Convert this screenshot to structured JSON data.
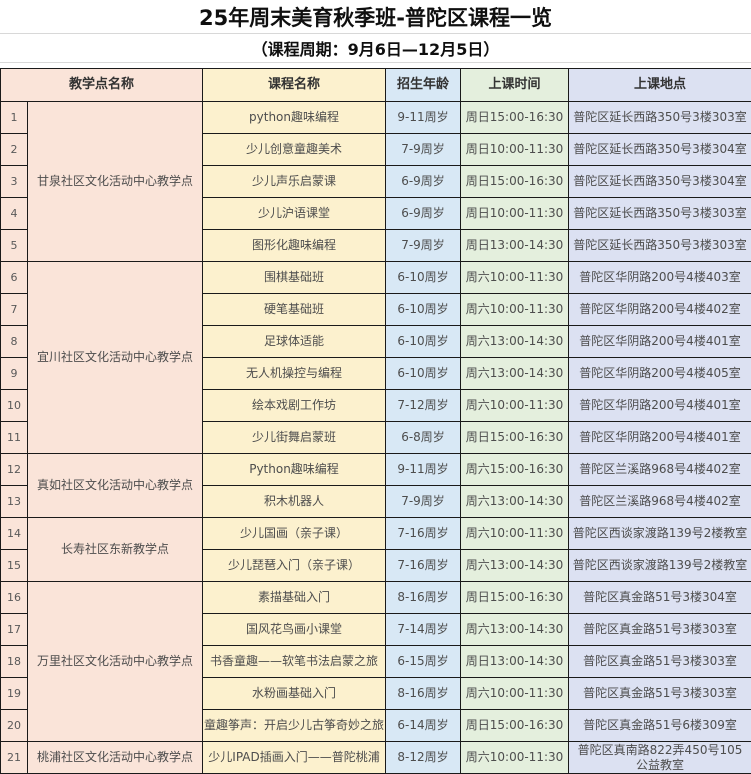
{
  "title": "25年周末美育秋季班-普陀区课程一览",
  "subtitle": "（课程周期：9月6日—12月5日）",
  "colors": {
    "site_column": "#fae4d9",
    "course_column": "#fcf1ce",
    "age_column": "#d8e8f5",
    "time_column": "#e4efdd",
    "location_column": "#dce1f2"
  },
  "table": {
    "headers": [
      "教学点名称",
      "课程名称",
      "招生年龄",
      "上课时间",
      "上课地点"
    ],
    "groups": [
      {
        "site": "甘泉社区文化活动中心教学点",
        "rows": [
          {
            "no": "1",
            "course": "python趣味编程",
            "age": "9-11周岁",
            "time": "周日15:00-16:30",
            "location": "普陀区延长西路350号3楼303室"
          },
          {
            "no": "2",
            "course": "少儿创意童趣美术",
            "age": "7-9周岁",
            "time": "周日10:00-11:30",
            "location": "普陀区延长西路350号3楼304室"
          },
          {
            "no": "3",
            "course": "少儿声乐启蒙课",
            "age": "6-9周岁",
            "time": "周日15:00-16:30",
            "location": "普陀区延长西路350号3楼304室"
          },
          {
            "no": "4",
            "course": "少儿沪语课堂",
            "age": "6-9周岁",
            "time": "周日10:00-11:30",
            "location": "普陀区延长西路350号3楼303室"
          },
          {
            "no": "5",
            "course": "图形化趣味编程",
            "age": "7-9周岁",
            "time": "周日13:00-14:30",
            "location": "普陀区延长西路350号3楼303室"
          }
        ]
      },
      {
        "site": "宜川社区文化活动中心教学点",
        "rows": [
          {
            "no": "6",
            "course": "围棋基础班",
            "age": "6-10周岁",
            "time": "周六10:00-11:30",
            "location": "普陀区华阴路200号4楼403室"
          },
          {
            "no": "7",
            "course": "硬笔基础班",
            "age": "6-10周岁",
            "time": "周六10:00-11:30",
            "location": "普陀区华阴路200号4楼402室"
          },
          {
            "no": "8",
            "course": "足球体适能",
            "age": "6-10周岁",
            "time": "周六13:00-14:30",
            "location": "普陀区华阴路200号4楼401室"
          },
          {
            "no": "9",
            "course": "无人机操控与编程",
            "age": "6-10周岁",
            "time": "周六13:00-14:30",
            "location": "普陀区华阴路200号4楼405室"
          },
          {
            "no": "10",
            "course": "绘本戏剧工作坊",
            "age": "7-12周岁",
            "time": "周六10:00-11:30",
            "location": "普陀区华阴路200号4楼401室"
          },
          {
            "no": "11",
            "course": "少儿街舞启蒙班",
            "age": "6-8周岁",
            "time": "周日15:00-16:30",
            "location": "普陀区华阴路200号4楼401室"
          }
        ]
      },
      {
        "site": "真如社区文化活动中心教学点",
        "rows": [
          {
            "no": "12",
            "course": "Python趣味编程",
            "age": "9-11周岁",
            "time": "周六15:00-16:30",
            "location": "普陀区兰溪路968号4楼402室"
          },
          {
            "no": "13",
            "course": "积木机器人",
            "age": "7-9周岁",
            "time": "周六13:00-14:30",
            "location": "普陀区兰溪路968号4楼402室"
          }
        ]
      },
      {
        "site": "长寿社区东新教学点",
        "rows": [
          {
            "no": "14",
            "course": "少儿国画（亲子课）",
            "age": "7-16周岁",
            "time": "周六10:00-11:30",
            "location": "普陀区西谈家渡路139号2楼教室"
          },
          {
            "no": "15",
            "course": "少儿琵琶入门（亲子课）",
            "age": "7-16周岁",
            "time": "周六13:00-14:30",
            "location": "普陀区西谈家渡路139号2楼教室"
          }
        ]
      },
      {
        "site": "万里社区文化活动中心教学点",
        "rows": [
          {
            "no": "16",
            "course": "素描基础入门",
            "age": "8-16周岁",
            "time": "周日15:00-16:30",
            "location": "普陀区真金路51号3楼304室"
          },
          {
            "no": "17",
            "course": "国风花鸟画小课堂",
            "age": "7-14周岁",
            "time": "周六13:00-14:30",
            "location": "普陀区真金路51号3楼303室"
          },
          {
            "no": "18",
            "course": "书香童趣——软笔书法启蒙之旅",
            "age": "6-15周岁",
            "time": "周日13:00-14:30",
            "location": "普陀区真金路51号3楼303室"
          },
          {
            "no": "19",
            "course": "水粉画基础入门",
            "age": "8-16周岁",
            "time": "周六10:00-11:30",
            "location": "普陀区真金路51号3楼303室"
          },
          {
            "no": "20",
            "course": "童趣筝声：开启少儿古筝奇妙之旅",
            "age": "6-14周岁",
            "time": "周日15:00-16:30",
            "location": "普陀区真金路51号6楼309室"
          }
        ]
      },
      {
        "site": "桃浦社区文化活动中心教学点",
        "rows": [
          {
            "no": "21",
            "course": "少儿IPAD插画入门——普陀桃浦",
            "age": "8-12周岁",
            "time": "周六10:00-11:30",
            "location": "普陀区真南路822弄450号105公益教室"
          }
        ]
      }
    ]
  }
}
